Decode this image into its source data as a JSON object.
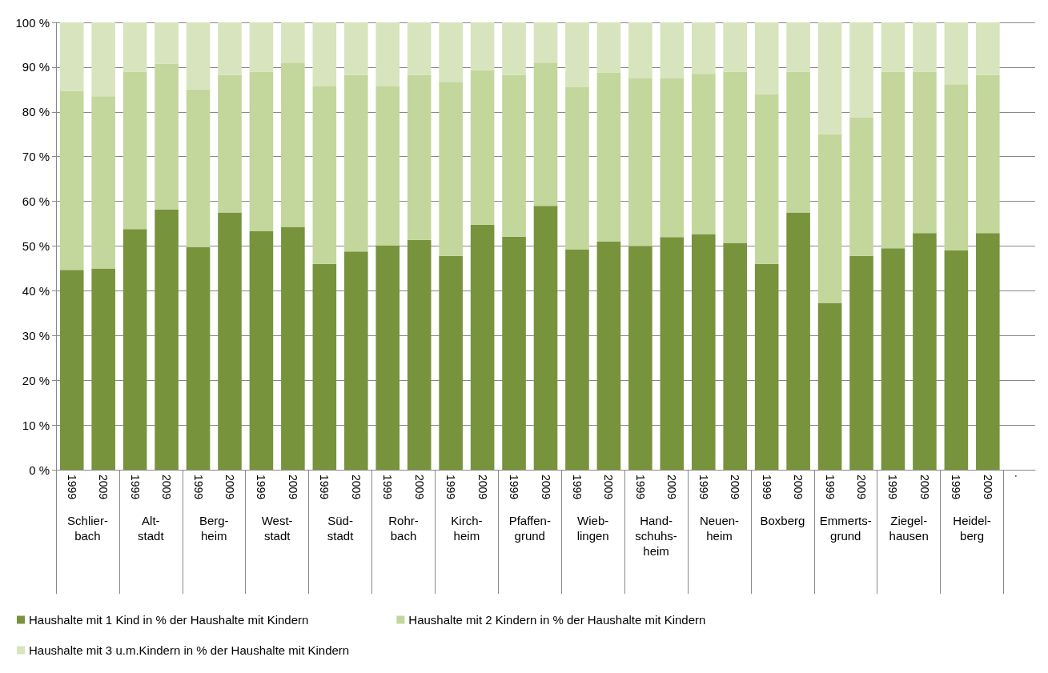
{
  "chart_data": {
    "type": "bar",
    "stacked": true,
    "grid": "y",
    "legend": "bottom",
    "categories": [
      "1999",
      "2009",
      "1999",
      "2009",
      "1999",
      "2009",
      "1999",
      "2009",
      "1999",
      "2009",
      "1999",
      "2009",
      "1999",
      "2009",
      "1999",
      "2009",
      "1999",
      "2009",
      "1999",
      "2009",
      "1999",
      "2009",
      "1999",
      "2009",
      "1999",
      "2009",
      "1999",
      "2009",
      "1999",
      "2009",
      "."
    ],
    "annotations": [
      "Schlier-\nbach",
      "Alt-\nstadt",
      "Berg-\nheim",
      "West-\nstadt",
      "Süd-\nstadt",
      "Rohr-\nbach",
      "Kirch-\nheim",
      "Pfaffen-\ngrund",
      "Wieb-\nlingen",
      "Hand-\nschuhs-\nheim",
      "Neuen-\nheim",
      "Boxberg",
      "Emmerts-\ngrund",
      "Ziegel-\nhausen",
      "Heidel-\nberg"
    ],
    "ylim": [
      0,
      100
    ],
    "yticks": [
      {
        "value": 0,
        "label": "0 %"
      },
      {
        "value": 10,
        "label": "10 %"
      },
      {
        "value": 20,
        "label": "20 %"
      },
      {
        "value": 30,
        "label": "30 %"
      },
      {
        "value": 40,
        "label": "40 %"
      },
      {
        "value": 50,
        "label": "50 %"
      },
      {
        "value": 60,
        "label": "60 %"
      },
      {
        "value": 70,
        "label": "70 %"
      },
      {
        "value": 80,
        "label": "80 %"
      },
      {
        "value": 90,
        "label": "90 %"
      },
      {
        "value": 100,
        "label": "100 %"
      }
    ],
    "series": [
      {
        "name": "Haushalte mit 1 Kind in % der Haushalte mit Kindern",
        "color": "#77933c",
        "values": [
          44.7,
          45,
          53.8,
          58.2,
          49.8,
          57.5,
          53.3,
          54.3,
          46,
          48.8,
          50.2,
          51.4,
          47.8,
          54.8,
          52.1,
          59,
          49.3,
          51,
          50,
          52,
          52.7,
          50.7,
          46,
          57.5,
          37.3,
          47.8,
          49.5,
          52.9,
          49,
          52.9,
          null
        ]
      },
      {
        "name": "Haushalte mit 2 Kindern in % der Haushalte mit Kindern",
        "color": "#c3d69b",
        "values": [
          40,
          38.5,
          35.2,
          32.6,
          35.2,
          30.8,
          35.7,
          36.7,
          39.7,
          39.5,
          35.5,
          36.9,
          38.9,
          34.5,
          36.2,
          32,
          36.2,
          37.8,
          37.5,
          35.5,
          35.8,
          38.3,
          38,
          31.5,
          37.7,
          31,
          39.5,
          36.1,
          37.2,
          35.4,
          null
        ]
      },
      {
        "name": "Haushalte mit 3 u.m.Kindern in % der Haushalte mit Kindern",
        "color": "#d7e4bd",
        "values": [
          15.3,
          16.5,
          11,
          9.2,
          15,
          11.7,
          11,
          9,
          14.3,
          11.7,
          14.3,
          11.7,
          13.3,
          10.7,
          11.7,
          9,
          14.5,
          11.2,
          12.5,
          12.5,
          11.5,
          11,
          16,
          11,
          25,
          21.2,
          11,
          11,
          13.8,
          11.7,
          null
        ]
      }
    ]
  }
}
